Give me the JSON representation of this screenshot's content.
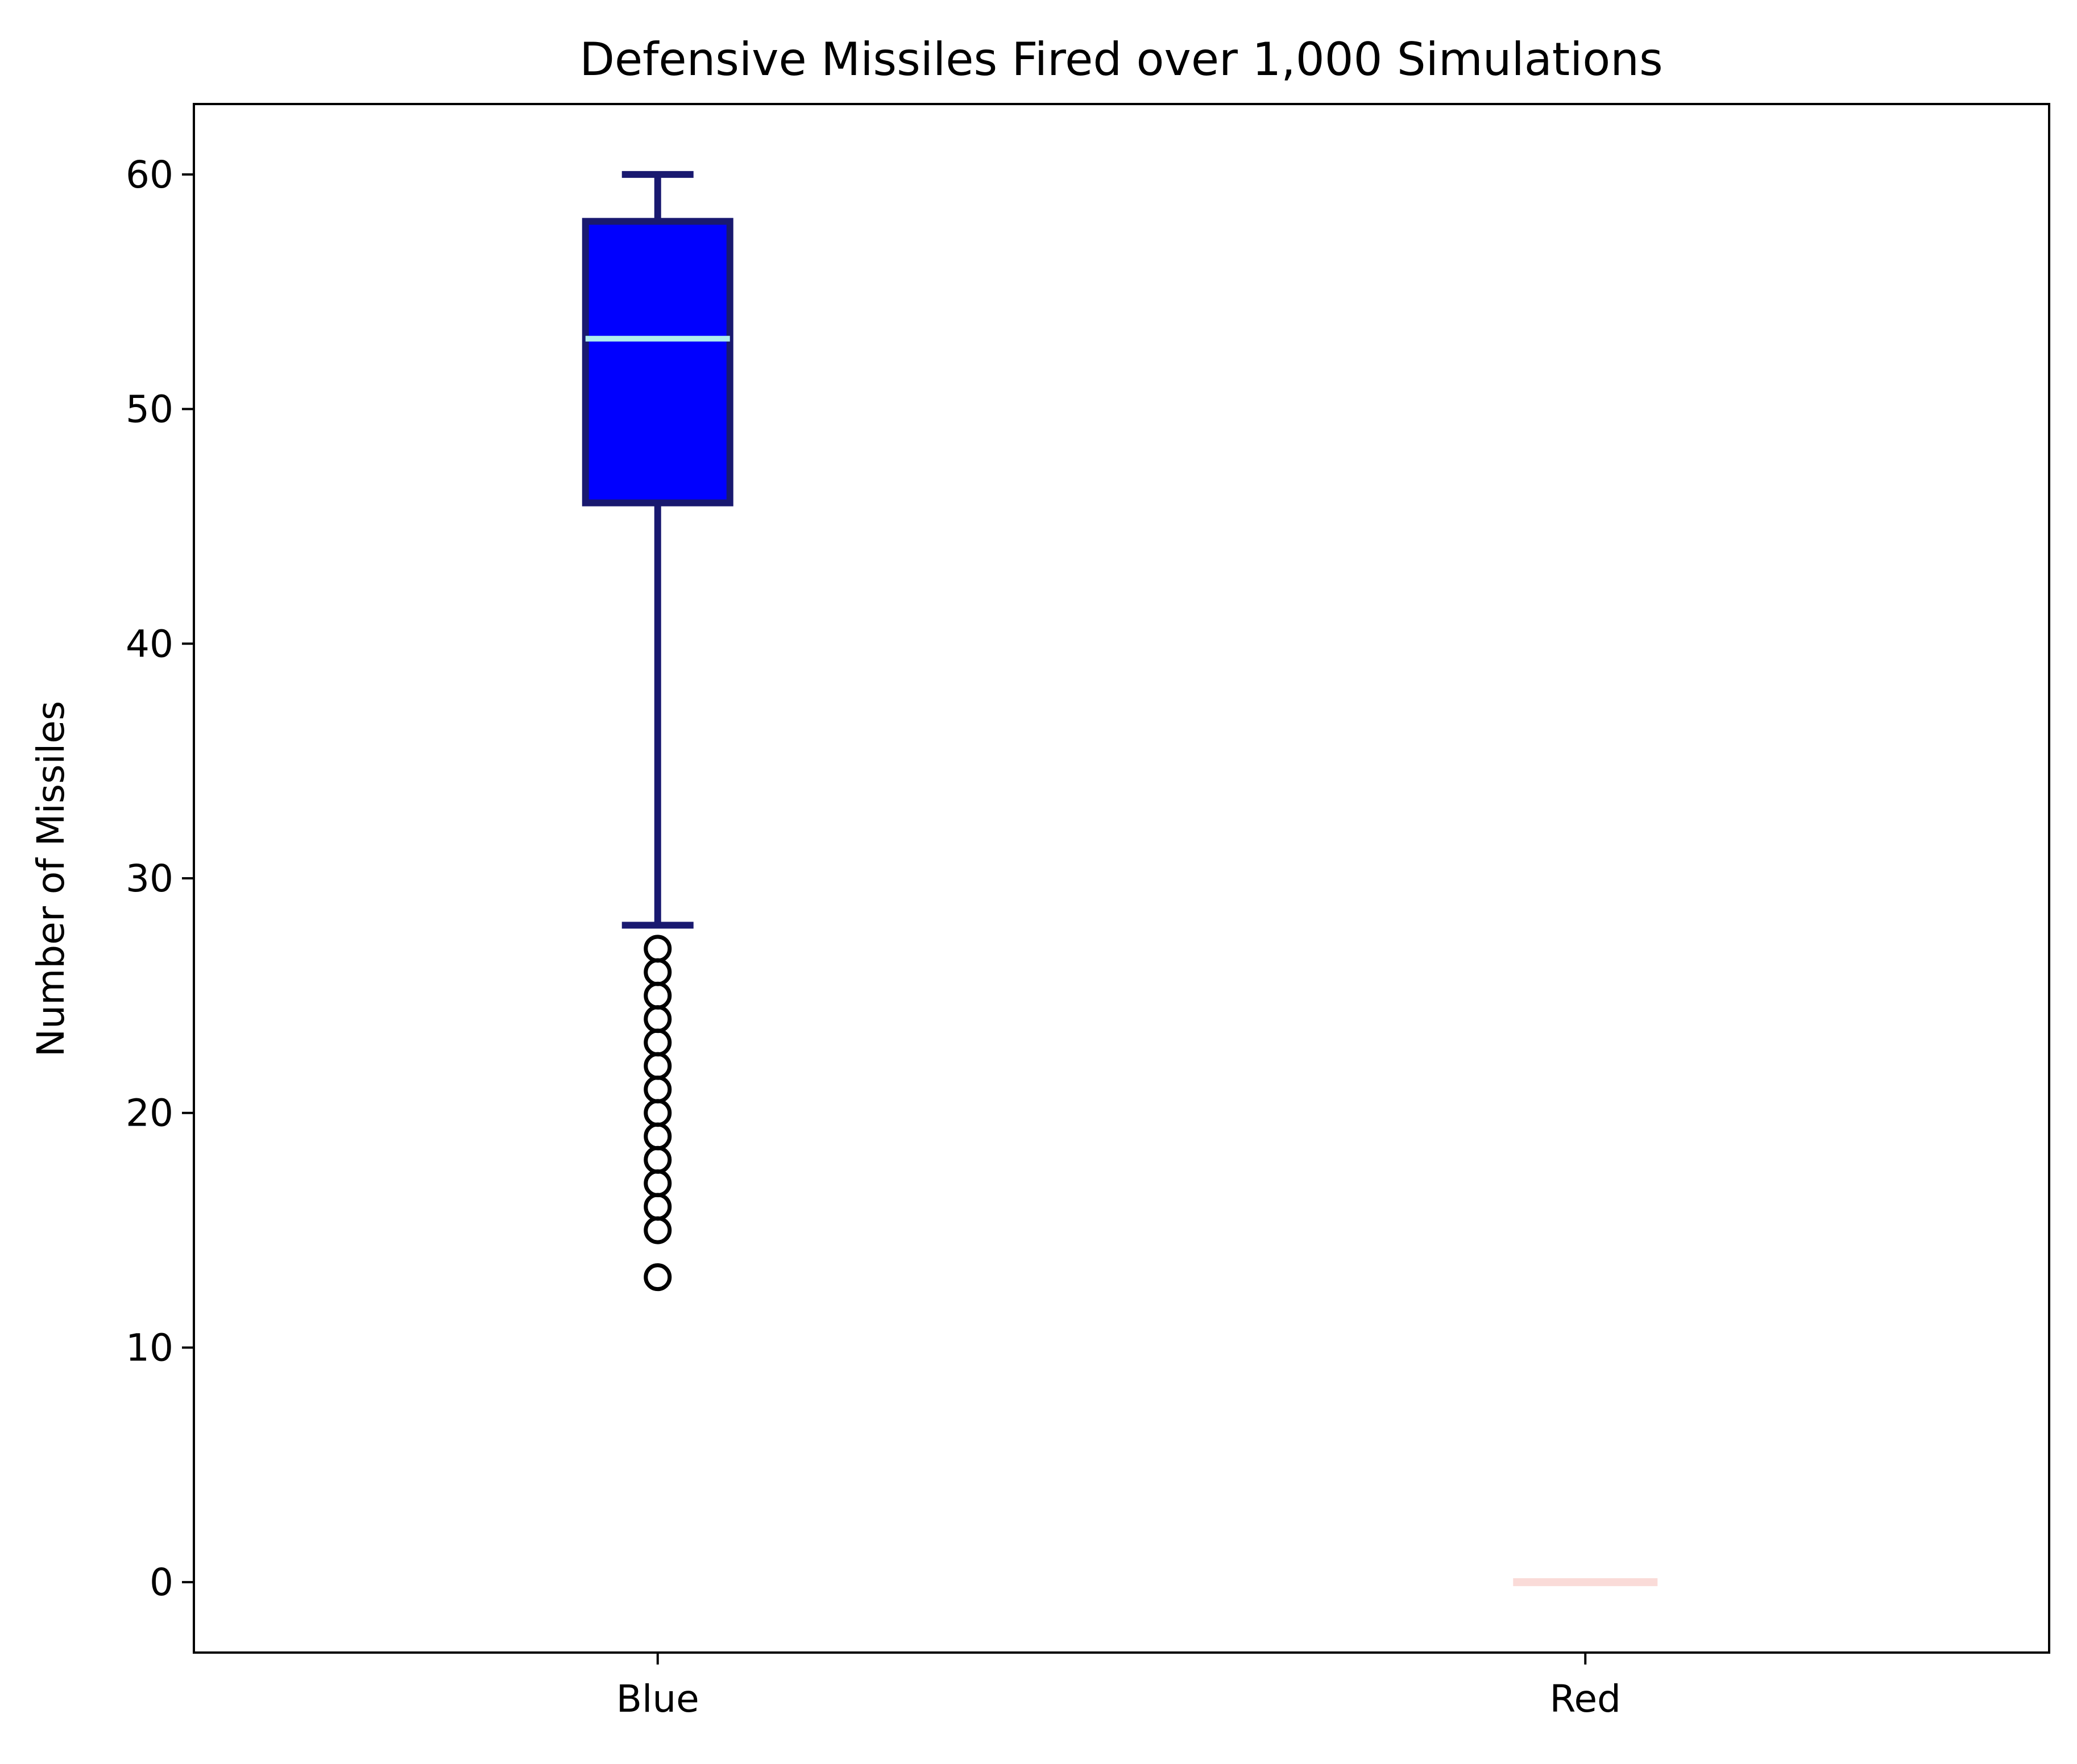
{
  "chart_data": {
    "type": "box",
    "title": "Defensive Missiles Fired over 1,000 Simulations",
    "xlabel": "",
    "ylabel": "Number of Missiles",
    "ylim": [
      -3,
      63
    ],
    "y_ticks": [
      0,
      10,
      20,
      30,
      40,
      50,
      60
    ],
    "y_tick_labels": [
      "0",
      "10",
      "20",
      "30",
      "40",
      "50",
      "60"
    ],
    "grid": false,
    "categories": [
      "Blue",
      "Red"
    ],
    "boxes": [
      {
        "label": "Blue",
        "whisker_low": 28,
        "q1": 46,
        "median": 53,
        "q3": 58,
        "whisker_high": 60,
        "outliers": [
          27,
          26,
          25,
          24,
          23,
          22,
          21,
          20,
          19,
          18,
          17,
          16,
          15,
          13
        ],
        "fill_color": "#0000ff",
        "edge_color": "#191970",
        "median_color": "#afeeee"
      },
      {
        "label": "Red",
        "whisker_low": 0,
        "q1": 0,
        "median": 0,
        "q3": 0,
        "whisker_high": 0,
        "outliers": [],
        "fill_color": "#ffe4e1",
        "edge_color": "#ffe4e1",
        "median_color": "#fadbd8"
      }
    ]
  }
}
